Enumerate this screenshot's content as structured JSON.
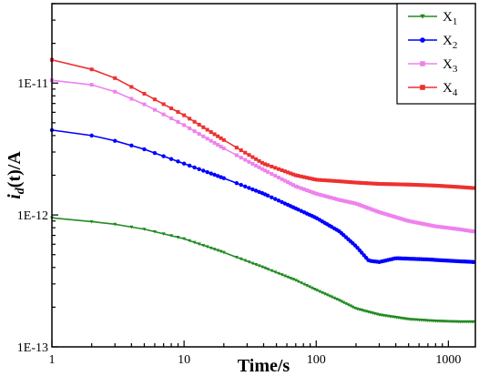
{
  "chart_data": {
    "type": "line",
    "xlabel": "Time/s",
    "ylabel_main": "i",
    "ylabel_sub": "d",
    "ylabel_rest": "(t)/A",
    "xscale": "log",
    "yscale": "log",
    "xlim": [
      1,
      1600
    ],
    "ylim": [
      1e-13,
      4e-11
    ],
    "x_ticks": [
      {
        "value": 1,
        "label": "1"
      },
      {
        "value": 10,
        "label": "10"
      },
      {
        "value": 100,
        "label": "100"
      },
      {
        "value": 1000,
        "label": "1000"
      }
    ],
    "y_ticks": [
      {
        "value": 1e-13,
        "label": "1E-13"
      },
      {
        "value": 1e-12,
        "label": "1E-12"
      },
      {
        "value": 1e-11,
        "label": "1E-11"
      }
    ],
    "legend_position": "top-right",
    "series": [
      {
        "name": "X",
        "subscript": "1",
        "color": "#228B22",
        "marker": "triangle-down",
        "points": [
          [
            1,
            9.5e-13
          ],
          [
            2,
            8.9e-13
          ],
          [
            3,
            8.5e-13
          ],
          [
            5,
            7.8e-13
          ],
          [
            10,
            6.6e-13
          ],
          [
            20,
            5.2e-13
          ],
          [
            40,
            4e-13
          ],
          [
            70,
            3.2e-13
          ],
          [
            100,
            2.7e-13
          ],
          [
            150,
            2.25e-13
          ],
          [
            200,
            1.95e-13
          ],
          [
            300,
            1.75e-13
          ],
          [
            500,
            1.62e-13
          ],
          [
            800,
            1.57e-13
          ],
          [
            1200,
            1.55e-13
          ],
          [
            1550,
            1.55e-13
          ]
        ]
      },
      {
        "name": "X",
        "subscript": "2",
        "color": "#0000FF",
        "marker": "circle",
        "points": [
          [
            1,
            4.4e-12
          ],
          [
            2,
            4e-12
          ],
          [
            3,
            3.65e-12
          ],
          [
            5,
            3.15e-12
          ],
          [
            10,
            2.45e-12
          ],
          [
            20,
            1.9e-12
          ],
          [
            40,
            1.45e-12
          ],
          [
            70,
            1.12e-12
          ],
          [
            100,
            9.5e-13
          ],
          [
            150,
            7.5e-13
          ],
          [
            200,
            5.8e-13
          ],
          [
            250,
            4.5e-13
          ],
          [
            300,
            4.4e-13
          ],
          [
            400,
            4.7e-13
          ],
          [
            700,
            4.6e-13
          ],
          [
            1000,
            4.5e-13
          ],
          [
            1550,
            4.4e-13
          ]
        ]
      },
      {
        "name": "X",
        "subscript": "3",
        "color": "#EE82EE",
        "marker": "square",
        "points": [
          [
            1,
            1.05e-11
          ],
          [
            2,
            9.7e-12
          ],
          [
            3,
            8.6e-12
          ],
          [
            5,
            6.9e-12
          ],
          [
            10,
            4.8e-12
          ],
          [
            20,
            3.2e-12
          ],
          [
            40,
            2.2e-12
          ],
          [
            70,
            1.65e-12
          ],
          [
            100,
            1.45e-12
          ],
          [
            150,
            1.3e-12
          ],
          [
            200,
            1.22e-12
          ],
          [
            300,
            1.05e-12
          ],
          [
            500,
            9e-13
          ],
          [
            800,
            8.2e-13
          ],
          [
            1200,
            7.8e-13
          ],
          [
            1550,
            7.5e-13
          ]
        ]
      },
      {
        "name": "X",
        "subscript": "4",
        "color": "#EE3030",
        "marker": "square",
        "points": [
          [
            1,
            1.5e-11
          ],
          [
            2,
            1.27e-11
          ],
          [
            3,
            1.09e-11
          ],
          [
            5,
            8.3e-12
          ],
          [
            10,
            5.7e-12
          ],
          [
            20,
            3.7e-12
          ],
          [
            40,
            2.45e-12
          ],
          [
            70,
            2e-12
          ],
          [
            100,
            1.85e-12
          ],
          [
            150,
            1.8e-12
          ],
          [
            200,
            1.76e-12
          ],
          [
            300,
            1.72e-12
          ],
          [
            500,
            1.7e-12
          ],
          [
            800,
            1.67e-12
          ],
          [
            1200,
            1.63e-12
          ],
          [
            1550,
            1.6e-12
          ]
        ]
      }
    ]
  }
}
